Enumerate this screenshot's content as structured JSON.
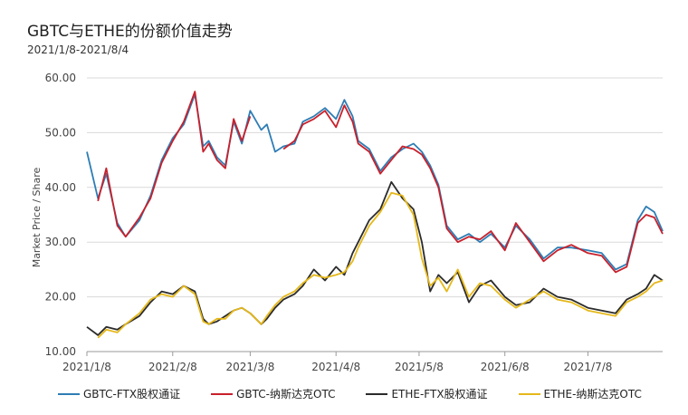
{
  "title": "GBTC与ETHE的份额价值走势",
  "subtitle": "2021/1/8-2021/8/4",
  "chart_data": {
    "type": "line",
    "title": "GBTC与ETHE的份额价值走势",
    "subtitle": "2021/1/8-2021/8/4",
    "xlabel": "",
    "ylabel": "Market Price / Share",
    "x_range": [
      "2021-01-08",
      "2021-08-04"
    ],
    "x_ticks": [
      "2021/1/8",
      "2021/2/8",
      "2021/3/8",
      "2021/4/8",
      "2021/5/8",
      "2021/6/8",
      "2021/7/8"
    ],
    "x_tick_dates": [
      "2021-01-08",
      "2021-02-08",
      "2021-03-08",
      "2021-04-08",
      "2021-05-08",
      "2021-06-08",
      "2021-07-08"
    ],
    "ylim": [
      10,
      60
    ],
    "y_ticks": [
      "10.00",
      "20.00",
      "30.00",
      "40.00",
      "50.00",
      "60.00"
    ],
    "y_tick_values": [
      10,
      20,
      30,
      40,
      50,
      60
    ],
    "grid": "horizontal",
    "legend_position": "bottom",
    "x": [
      "2021-01-08",
      "2021-01-12",
      "2021-01-15",
      "2021-01-19",
      "2021-01-22",
      "2021-01-27",
      "2021-01-31",
      "2021-02-04",
      "2021-02-08",
      "2021-02-12",
      "2021-02-16",
      "2021-02-19",
      "2021-02-21",
      "2021-02-24",
      "2021-02-27",
      "2021-03-02",
      "2021-03-05",
      "2021-03-08",
      "2021-03-12",
      "2021-03-14",
      "2021-03-17",
      "2021-03-20",
      "2021-03-24",
      "2021-03-27",
      "2021-03-31",
      "2021-04-04",
      "2021-04-08",
      "2021-04-11",
      "2021-04-14",
      "2021-04-16",
      "2021-04-20",
      "2021-04-24",
      "2021-04-28",
      "2021-05-02",
      "2021-05-06",
      "2021-05-09",
      "2021-05-12",
      "2021-05-15",
      "2021-05-18",
      "2021-05-22",
      "2021-05-26",
      "2021-05-30",
      "2021-06-03",
      "2021-06-08",
      "2021-06-12",
      "2021-06-17",
      "2021-06-22",
      "2021-06-27",
      "2021-07-02",
      "2021-07-08",
      "2021-07-13",
      "2021-07-18",
      "2021-07-22",
      "2021-07-26",
      "2021-07-29",
      "2021-08-01",
      "2021-08-04"
    ],
    "series": [
      {
        "name": "GBTC-FTX股权通证",
        "color": "#2e7db5",
        "values": [
          46.5,
          38.0,
          42.5,
          33.5,
          31.0,
          34.0,
          38.5,
          45.0,
          49.0,
          51.5,
          57.0,
          47.5,
          48.5,
          45.5,
          44.0,
          52.0,
          48.0,
          54.0,
          50.5,
          51.5,
          46.5,
          47.5,
          48.0,
          52.0,
          53.0,
          54.5,
          52.5,
          56.0,
          53.0,
          48.5,
          47.0,
          43.0,
          45.5,
          47.0,
          48.0,
          46.5,
          44.0,
          40.5,
          33.0,
          30.5,
          31.5,
          30.0,
          31.5,
          29.0,
          33.0,
          30.5,
          27.0,
          29.0,
          29.0,
          28.5,
          28.0,
          25.0,
          26.0,
          34.0,
          36.5,
          35.5,
          32.0
        ]
      },
      {
        "name": "GBTC-纳斯达克OTC",
        "color": "#c8202b",
        "values": [
          null,
          37.5,
          43.5,
          33.0,
          31.0,
          34.5,
          38.0,
          44.5,
          48.5,
          52.0,
          57.5,
          46.5,
          48.0,
          45.0,
          43.5,
          52.5,
          48.5,
          53.0,
          null,
          51.0,
          null,
          47.0,
          48.5,
          51.5,
          52.5,
          54.0,
          51.0,
          55.0,
          52.0,
          48.0,
          46.5,
          42.5,
          45.0,
          47.5,
          47.0,
          46.0,
          43.5,
          40.0,
          32.5,
          30.0,
          31.0,
          30.5,
          32.0,
          28.5,
          33.5,
          30.0,
          26.5,
          28.5,
          29.5,
          28.0,
          27.5,
          24.5,
          25.5,
          33.5,
          35.0,
          34.5,
          31.5
        ]
      },
      {
        "name": "ETHE-FTX股权通证",
        "color": "#2b2b2b",
        "values": [
          14.5,
          13.0,
          14.5,
          14.0,
          15.0,
          16.5,
          19.0,
          21.0,
          20.5,
          22.0,
          21.0,
          16.0,
          15.0,
          15.5,
          16.5,
          17.5,
          18.0,
          17.0,
          15.0,
          16.0,
          18.0,
          19.5,
          20.5,
          22.0,
          25.0,
          23.0,
          25.5,
          24.0,
          28.0,
          30.0,
          34.0,
          36.0,
          41.0,
          38.0,
          36.0,
          30.0,
          21.0,
          24.0,
          22.5,
          24.5,
          19.0,
          22.0,
          23.0,
          20.0,
          18.5,
          19.0,
          21.5,
          20.0,
          19.5,
          18.0,
          17.5,
          17.0,
          19.5,
          20.5,
          21.5,
          24.0,
          23.0
        ]
      },
      {
        "name": "ETHE-纳斯达克OTC",
        "color": "#e5b81a",
        "values": [
          null,
          12.5,
          14.0,
          13.5,
          15.0,
          17.0,
          19.5,
          20.5,
          20.0,
          22.0,
          20.5,
          15.5,
          15.0,
          16.0,
          16.0,
          17.5,
          18.0,
          17.0,
          15.0,
          16.5,
          18.5,
          20.0,
          21.0,
          22.5,
          24.0,
          23.5,
          24.0,
          24.5,
          26.5,
          29.0,
          33.0,
          35.5,
          39.0,
          38.5,
          35.0,
          27.0,
          22.0,
          23.5,
          21.0,
          25.0,
          20.0,
          22.5,
          22.0,
          19.5,
          18.0,
          19.5,
          21.0,
          19.5,
          19.0,
          17.5,
          17.0,
          16.5,
          19.0,
          20.0,
          21.0,
          22.5,
          23.0
        ]
      }
    ]
  }
}
